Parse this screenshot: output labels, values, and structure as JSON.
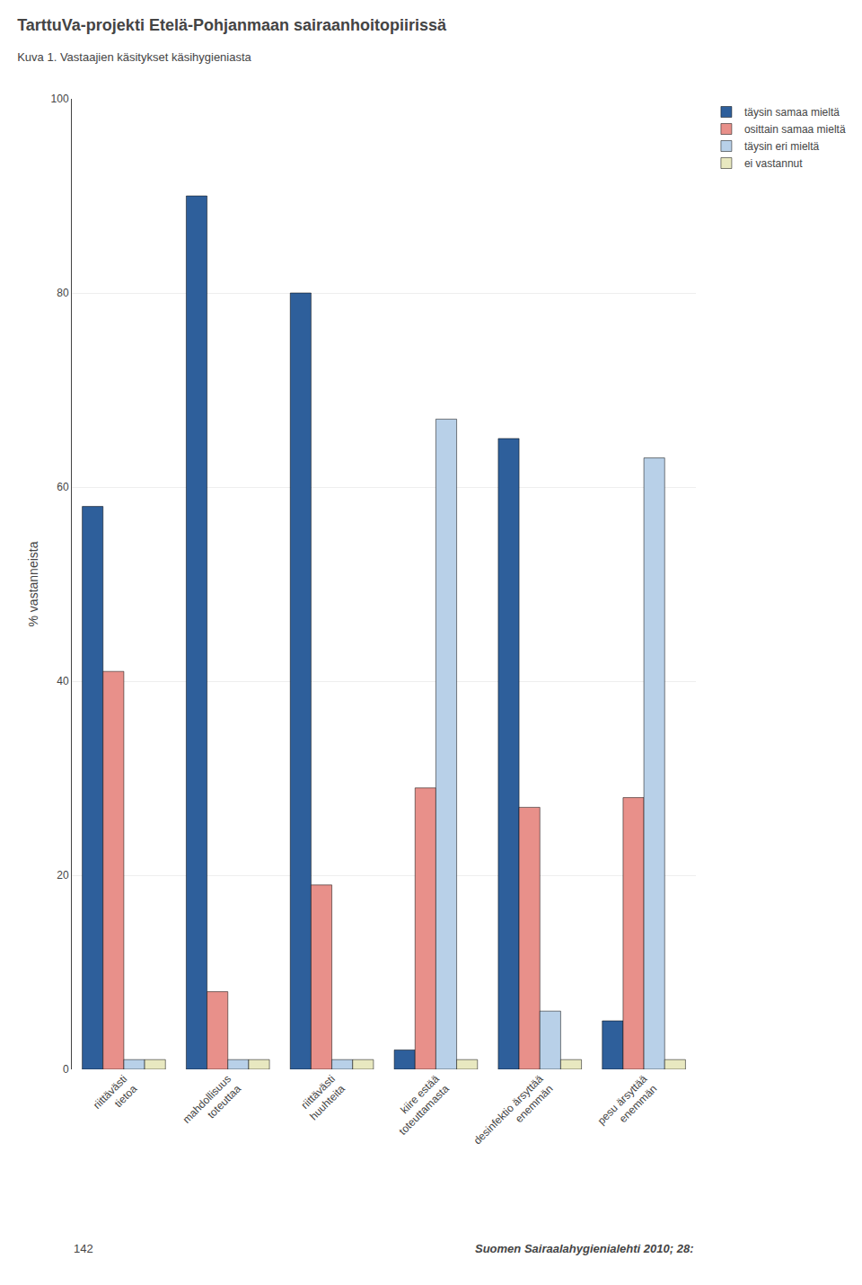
{
  "chart_data": {
    "type": "bar",
    "title": "TarttuVa-projekti Etelä-Pohjanmaan sairaanhoitopiirissä",
    "subtitle": "Kuva 1. Vastaajien käsitykset käsihygieniasta",
    "categories": [
      "riittävästi\ntietoa",
      "mahdollisuus\ntoteuttaa",
      "riittävästi\nhuuhteita",
      "kiire estää\ntoteuttamasta",
      "desinfektio ärsyttää\nenemmän",
      "pesu ärsyttää\nenemmän"
    ],
    "series": [
      {
        "name": "täysin samaa mieltä",
        "color": "#2E5F9B",
        "values": [
          58,
          90,
          80,
          2,
          65,
          5
        ]
      },
      {
        "name": "osittain samaa mieltä",
        "color": "#E8908A",
        "values": [
          41,
          8,
          19,
          29,
          27,
          28
        ]
      },
      {
        "name": "täysin eri mieltä",
        "color": "#B8D0E8",
        "values": [
          1,
          1,
          1,
          67,
          6,
          63
        ]
      },
      {
        "name": "ei vastannut",
        "color": "#E8E8C0",
        "values": [
          1,
          1,
          1,
          1,
          1,
          1
        ]
      }
    ],
    "ylabel": "% vastanneista",
    "ylim": [
      0,
      100
    ],
    "yticks": [
      0,
      20,
      40,
      60,
      80,
      100
    ],
    "grid": true,
    "legend": "right",
    "annotations": [
      "142",
      "Suomen Sairaalahygienialehti 2010; 28:"
    ]
  }
}
